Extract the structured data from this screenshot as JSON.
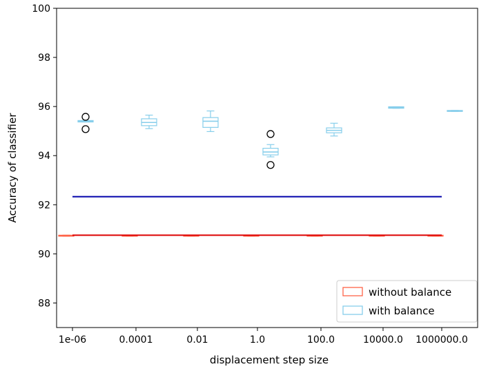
{
  "chart_data": {
    "type": "box",
    "xlabel": "displacement step size",
    "ylabel": "Accuracy of classifier",
    "ylim": [
      87,
      100
    ],
    "yticks": [
      88,
      90,
      92,
      94,
      96,
      98,
      100
    ],
    "categories": [
      "1e-06",
      "0.0001",
      "0.01",
      "1.0",
      "100.0",
      "10000.0",
      "1000000.0"
    ],
    "grid": false,
    "legend_position": "lower-right",
    "series": [
      {
        "name": "without balance",
        "color": "#ff6347",
        "boxes": [
          {
            "q1": 90.72,
            "median": 90.74,
            "q3": 90.76,
            "whisker_low": 90.72,
            "whisker_high": 90.76,
            "outliers": []
          },
          {
            "q1": 90.72,
            "median": 90.74,
            "q3": 90.76,
            "whisker_low": 90.72,
            "whisker_high": 90.76,
            "outliers": []
          },
          {
            "q1": 90.72,
            "median": 90.74,
            "q3": 90.76,
            "whisker_low": 90.72,
            "whisker_high": 90.76,
            "outliers": []
          },
          {
            "q1": 90.72,
            "median": 90.74,
            "q3": 90.76,
            "whisker_low": 90.72,
            "whisker_high": 90.76,
            "outliers": []
          },
          {
            "q1": 90.72,
            "median": 90.74,
            "q3": 90.76,
            "whisker_low": 90.72,
            "whisker_high": 90.76,
            "outliers": []
          },
          {
            "q1": 90.72,
            "median": 90.74,
            "q3": 90.76,
            "whisker_low": 90.72,
            "whisker_high": 90.76,
            "outliers": []
          },
          {
            "q1": 90.72,
            "median": 90.74,
            "q3": 90.76,
            "whisker_low": 90.72,
            "whisker_high": 90.76,
            "outliers": []
          }
        ]
      },
      {
        "name": "with balance",
        "color": "#87ceeb",
        "boxes": [
          {
            "q1": 95.37,
            "median": 95.4,
            "q3": 95.43,
            "whisker_low": 95.37,
            "whisker_high": 95.43,
            "outliers": [
              95.58,
              95.08
            ]
          },
          {
            "q1": 95.22,
            "median": 95.35,
            "q3": 95.5,
            "whisker_low": 95.1,
            "whisker_high": 95.65,
            "outliers": []
          },
          {
            "q1": 95.15,
            "median": 95.4,
            "q3": 95.55,
            "whisker_low": 94.98,
            "whisker_high": 95.82,
            "outliers": []
          },
          {
            "q1": 94.03,
            "median": 94.15,
            "q3": 94.3,
            "whisker_low": 93.95,
            "whisker_high": 94.45,
            "outliers": [
              94.88,
              93.62
            ]
          },
          {
            "q1": 94.93,
            "median": 95.03,
            "q3": 95.13,
            "whisker_low": 94.8,
            "whisker_high": 95.32,
            "outliers": []
          },
          {
            "q1": 95.93,
            "median": 95.96,
            "q3": 95.99,
            "whisker_low": 95.93,
            "whisker_high": 95.99,
            "outliers": []
          },
          {
            "q1": 95.8,
            "median": 95.82,
            "q3": 95.84,
            "whisker_low": 95.8,
            "whisker_high": 95.84,
            "outliers": []
          }
        ]
      }
    ],
    "reference_lines": [
      {
        "y": 92.33,
        "color": "#0000aa",
        "x_from": "1e-06",
        "x_to": "1000000.0"
      },
      {
        "y": 90.76,
        "color": "#dd0000",
        "x_from": "1e-06",
        "x_to": "1000000.0"
      }
    ]
  }
}
